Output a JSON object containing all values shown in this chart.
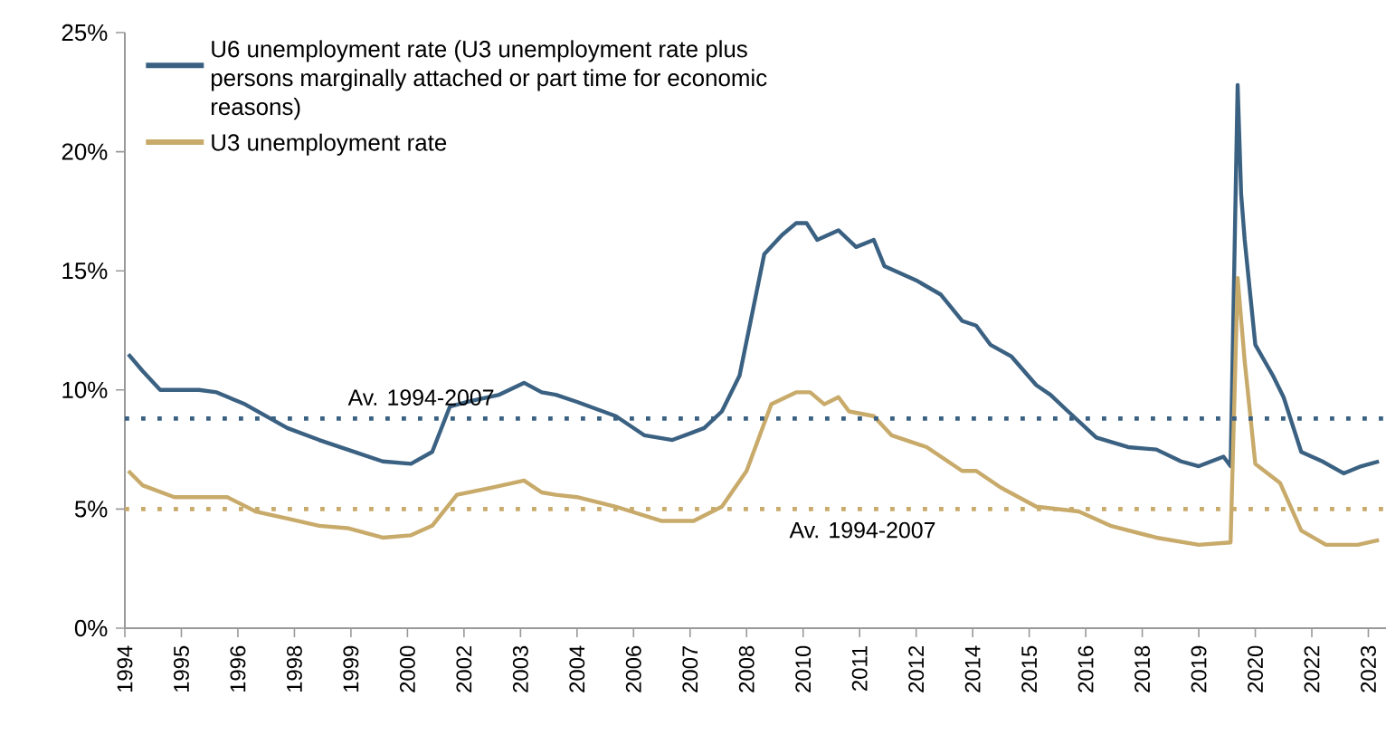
{
  "chart_data": {
    "type": "line",
    "legend": "top left",
    "line_style": "solid",
    "xlim": [
      "1994-01",
      "2023-10"
    ],
    "xticks": [
      {
        "value": "1994-01",
        "label": "1994"
      },
      {
        "value": "1995-05",
        "label": "1995"
      },
      {
        "value": "1996-09",
        "label": "1996"
      },
      {
        "value": "1998-01",
        "label": "1998"
      },
      {
        "value": "1999-05",
        "label": "1999"
      },
      {
        "value": "2000-09",
        "label": "2000"
      },
      {
        "value": "2002-01",
        "label": "2002"
      },
      {
        "value": "2003-05",
        "label": "2003"
      },
      {
        "value": "2004-09",
        "label": "2004"
      },
      {
        "value": "2006-01",
        "label": "2006"
      },
      {
        "value": "2007-05",
        "label": "2007"
      },
      {
        "value": "2008-09",
        "label": "2008"
      },
      {
        "value": "2010-01",
        "label": "2010"
      },
      {
        "value": "2011-05",
        "label": "2011"
      },
      {
        "value": "2012-09",
        "label": "2012"
      },
      {
        "value": "2014-01",
        "label": "2014"
      },
      {
        "value": "2015-05",
        "label": "2015"
      },
      {
        "value": "2016-09",
        "label": "2016"
      },
      {
        "value": "2018-01",
        "label": "2018"
      },
      {
        "value": "2019-05",
        "label": "2019"
      },
      {
        "value": "2020-09",
        "label": "2020"
      },
      {
        "value": "2022-01",
        "label": "2022"
      },
      {
        "value": "2023-05",
        "label": "2023"
      }
    ],
    "ylim": [
      0,
      25
    ],
    "yticks": [
      {
        "value": 0,
        "label": "0%"
      },
      {
        "value": 5,
        "label": "5%"
      },
      {
        "value": 10,
        "label": "10%"
      },
      {
        "value": 15,
        "label": "15%"
      },
      {
        "value": 20,
        "label": "20%"
      },
      {
        "value": 25,
        "label": "25%"
      }
    ],
    "series": [
      {
        "name": "U6 unemployment rate (U3 unemployment rate plus persons marginally attached or part time for economic reasons)",
        "color": "#3b6182",
        "x": [
          "1994-02",
          "1994-06",
          "1994-11",
          "1995-10",
          "1996-03",
          "1996-11",
          "1997-11",
          "1998-08",
          "1999-04",
          "2000-02",
          "2000-10",
          "2001-04",
          "2001-09",
          "2002-02",
          "2002-11",
          "2003-06",
          "2003-11",
          "2004-03",
          "2004-09",
          "2005-08",
          "2006-04",
          "2006-12",
          "2007-09",
          "2008-02",
          "2008-07",
          "2009-02",
          "2009-07",
          "2009-11",
          "2010-02",
          "2010-05",
          "2010-11",
          "2011-04",
          "2011-09",
          "2011-12",
          "2012-09",
          "2013-04",
          "2013-10",
          "2014-02",
          "2014-06",
          "2014-12",
          "2015-07",
          "2015-11",
          "2016-04",
          "2016-12",
          "2017-09",
          "2018-05",
          "2018-12",
          "2019-05",
          "2019-12",
          "2020-02",
          "2020-04",
          "2020-05",
          "2020-06",
          "2020-09",
          "2021-02",
          "2021-05",
          "2021-10",
          "2022-04",
          "2022-10",
          "2023-03",
          "2023-08"
        ],
        "values": [
          11.5,
          10.8,
          10.0,
          10.0,
          9.9,
          9.4,
          8.4,
          7.9,
          7.5,
          7.0,
          6.9,
          7.4,
          9.3,
          9.5,
          9.8,
          10.3,
          9.9,
          9.8,
          9.5,
          8.9,
          8.1,
          7.9,
          8.4,
          9.1,
          10.6,
          15.7,
          16.5,
          17.0,
          17.0,
          16.3,
          16.7,
          16.0,
          16.3,
          15.2,
          14.6,
          14.0,
          12.9,
          12.7,
          11.9,
          11.4,
          10.2,
          9.8,
          9.1,
          8.0,
          7.6,
          7.5,
          7.0,
          6.8,
          7.2,
          6.8,
          22.8,
          18.2,
          16.3,
          11.9,
          10.6,
          9.7,
          7.4,
          7.0,
          6.5,
          6.8,
          7.0
        ]
      },
      {
        "name": "U3 unemployment rate",
        "color": "#c8aa6a",
        "x": [
          "1994-02",
          "1994-06",
          "1995-03",
          "1996-06",
          "1997-02",
          "1997-11",
          "1998-08",
          "1999-04",
          "2000-02",
          "2000-10",
          "2001-04",
          "2001-11",
          "2002-09",
          "2003-06",
          "2003-11",
          "2004-03",
          "2004-09",
          "2005-08",
          "2006-09",
          "2007-06",
          "2008-02",
          "2008-09",
          "2009-04",
          "2009-11",
          "2010-03",
          "2010-07",
          "2010-11",
          "2011-02",
          "2011-09",
          "2012-02",
          "2012-12",
          "2013-10",
          "2014-02",
          "2014-09",
          "2015-07",
          "2016-07",
          "2017-04",
          "2018-05",
          "2019-05",
          "2020-02",
          "2020-04",
          "2020-06",
          "2020-09",
          "2021-04",
          "2021-10",
          "2022-05",
          "2023-02",
          "2023-08"
        ],
        "values": [
          6.6,
          6.0,
          5.5,
          5.5,
          4.9,
          4.6,
          4.3,
          4.2,
          3.8,
          3.9,
          4.3,
          5.6,
          5.9,
          6.2,
          5.7,
          5.6,
          5.5,
          5.1,
          4.5,
          4.5,
          5.1,
          6.6,
          9.4,
          9.9,
          9.9,
          9.4,
          9.7,
          9.1,
          8.9,
          8.1,
          7.6,
          6.6,
          6.6,
          5.9,
          5.1,
          4.9,
          4.3,
          3.8,
          3.5,
          3.6,
          14.7,
          11.2,
          6.9,
          6.1,
          4.1,
          3.5,
          3.5,
          3.7
        ]
      }
    ],
    "ref_lines": [
      {
        "axis": "y",
        "value": 8.8,
        "label": "Av. 1994-2007",
        "color": "#3b6182",
        "line_style": "dotted"
      },
      {
        "axis": "y",
        "value": 5.0,
        "label": "Av. 1994-2007",
        "color": "#c8aa6a",
        "line_style": "dotted"
      }
    ]
  }
}
